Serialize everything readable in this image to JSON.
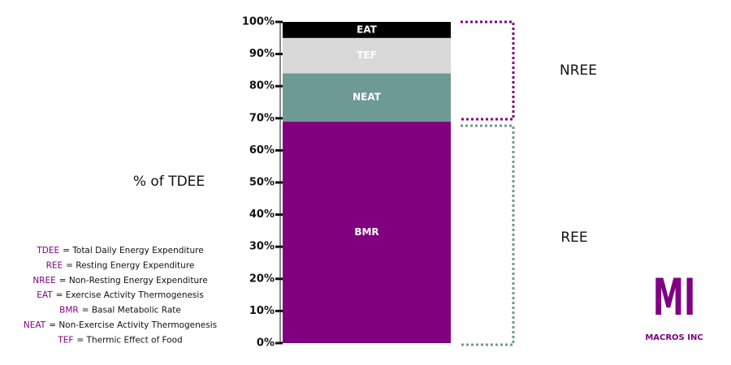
{
  "chart_data": {
    "type": "stacked-bar",
    "y_label": "% of TDEE",
    "categories": [
      null
    ],
    "series": [
      {
        "name": "BMR",
        "color": "#800080",
        "values": [
          69
        ]
      },
      {
        "name": "NEAT",
        "color": "#6e9a94",
        "values": [
          15
        ]
      },
      {
        "name": "TEF",
        "color": "#d9d9d9",
        "values": [
          11
        ]
      },
      {
        "name": "EAT",
        "color": "#000000",
        "values": [
          5
        ]
      }
    ],
    "ylim": [
      0,
      100
    ],
    "yticks": [
      {
        "value": 0,
        "label": "0%"
      },
      {
        "value": 10,
        "label": "10%"
      },
      {
        "value": 20,
        "label": "20%"
      },
      {
        "value": 30,
        "label": "30%"
      },
      {
        "value": 40,
        "label": "40%"
      },
      {
        "value": 50,
        "label": "50%"
      },
      {
        "value": 60,
        "label": "60%"
      },
      {
        "value": 70,
        "label": "70%"
      },
      {
        "value": 80,
        "label": "80%"
      },
      {
        "value": 90,
        "label": "90%"
      },
      {
        "value": 100,
        "label": "100%"
      }
    ],
    "annotations": [
      "NREE",
      "REE"
    ],
    "definitions": [
      {
        "abbr": "TDEE",
        "text": "= Total Daily Energy Expenditure"
      },
      {
        "abbr": "REE",
        "text": "= Resting Energy Expenditure"
      },
      {
        "abbr": "NREE",
        "text": "= Non-Resting Energy Expenditure"
      },
      {
        "abbr": "EAT",
        "text": "= Exercise Activity Thermogenesis"
      },
      {
        "abbr": "BMR",
        "text": "= Basal Metabolic Rate"
      },
      {
        "abbr": "NEAT",
        "text": "= Non-Exercise Activity Thermogenesis"
      },
      {
        "abbr": "TEF",
        "text": "= Thermic Effect of Food"
      }
    ],
    "logo": {
      "mark": "MI",
      "name": "MACROS INC"
    }
  }
}
